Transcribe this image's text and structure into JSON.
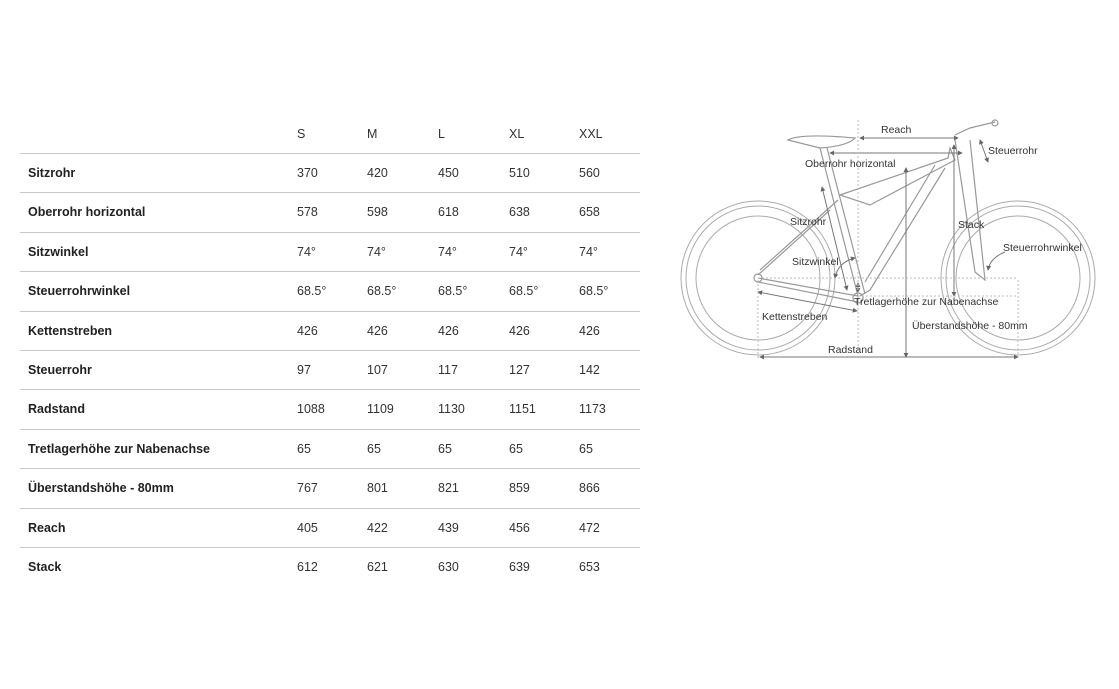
{
  "sizes": [
    "S",
    "M",
    "L",
    "XL",
    "XXL"
  ],
  "rows": [
    {
      "label": "Sitzrohr",
      "values": [
        "370",
        "420",
        "450",
        "510",
        "560"
      ]
    },
    {
      "label": "Oberrohr horizontal",
      "values": [
        "578",
        "598",
        "618",
        "638",
        "658"
      ]
    },
    {
      "label": "Sitzwinkel",
      "values": [
        "74°",
        "74°",
        "74°",
        "74°",
        "74°"
      ]
    },
    {
      "label": "Steuerrohrwinkel",
      "values": [
        "68.5°",
        "68.5°",
        "68.5°",
        "68.5°",
        "68.5°"
      ]
    },
    {
      "label": "Kettenstreben",
      "values": [
        "426",
        "426",
        "426",
        "426",
        "426"
      ]
    },
    {
      "label": "Steuerrohr",
      "values": [
        "97",
        "107",
        "117",
        "127",
        "142"
      ]
    },
    {
      "label": "Radstand",
      "values": [
        "1088",
        "1109",
        "1130",
        "1151",
        "1173"
      ]
    },
    {
      "label": "Tretlagerhöhe zur Nabenachse",
      "values": [
        "65",
        "65",
        "65",
        "65",
        "65"
      ]
    },
    {
      "label": "Überstandshöhe - 80mm",
      "values": [
        "767",
        "801",
        "821",
        "859",
        "866"
      ]
    },
    {
      "label": "Reach",
      "values": [
        "405",
        "422",
        "439",
        "456",
        "472"
      ]
    },
    {
      "label": "Stack",
      "values": [
        "612",
        "621",
        "630",
        "639",
        "653"
      ]
    }
  ],
  "diagram": {
    "reach": "Reach",
    "steuerrohr": "Steuerrohr",
    "oberrohr": "Oberrohr horizontal",
    "stack": "Stack",
    "sitzrohr": "Sitzrohr",
    "steuerrohrwinkel": "Steuerrohrwinkel",
    "sitzwinkel": "Sitzwinkel",
    "tretlager": "Tretlagerhöhe zur Nabenachse",
    "kettenstreben": "Kettenstreben",
    "ueberstand": "Überstandshöhe - 80mm",
    "radstand": "Radstand"
  }
}
